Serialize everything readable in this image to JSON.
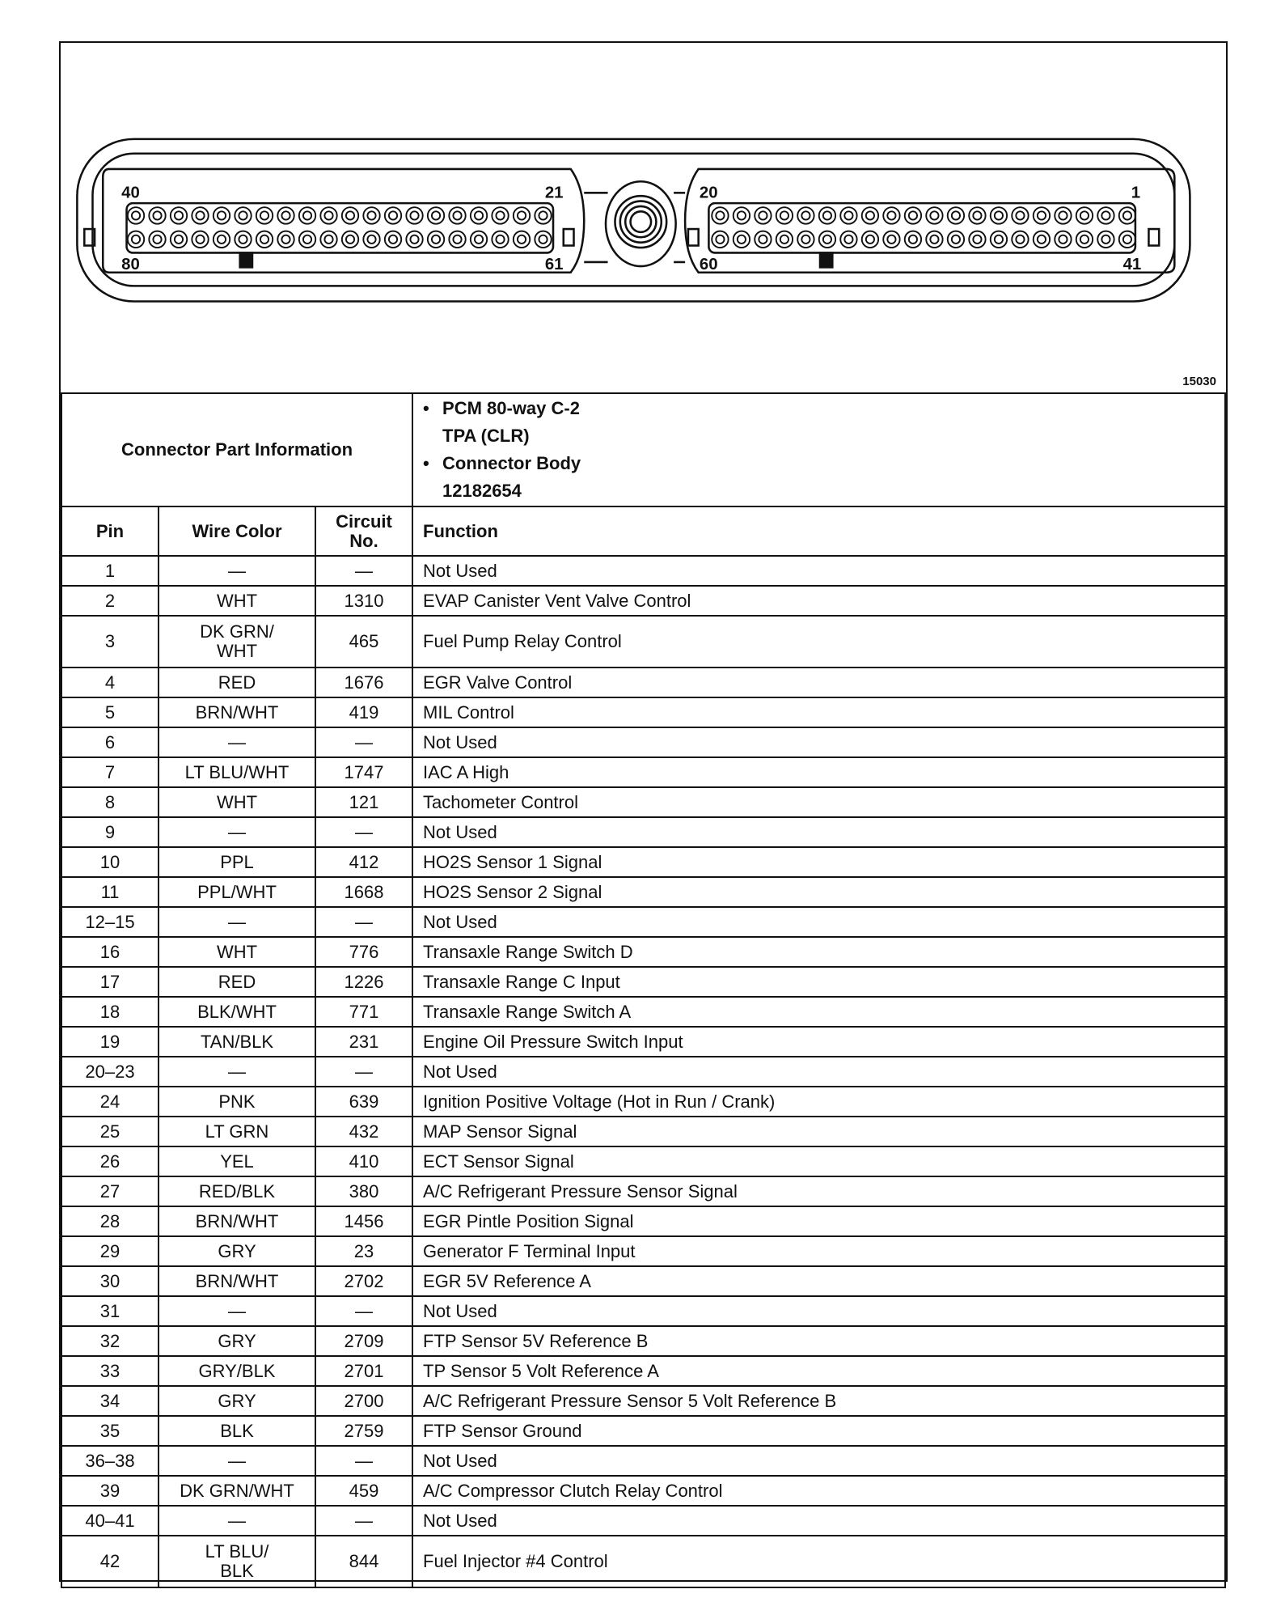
{
  "figure_number": "15030",
  "connector": {
    "pin_labels": {
      "top_left": "40",
      "top_mid_left": "21",
      "top_mid_right": "20",
      "top_right": "1",
      "bottom_left": "80",
      "bottom_mid_left": "61",
      "bottom_mid_right": "60",
      "bottom_right": "41"
    }
  },
  "part_info": {
    "label": "Connector Part Information",
    "items": [
      {
        "line1": "PCM 80-way C-2",
        "line2": "TPA (CLR)"
      },
      {
        "line1": "Connector Body",
        "line2": "12182654"
      }
    ]
  },
  "table": {
    "headers": {
      "pin": "Pin",
      "wire_color": "Wire Color",
      "circuit_line1": "Circuit",
      "circuit_line2": "No.",
      "function": "Function"
    },
    "rows": [
      {
        "pin": "1",
        "color": "—",
        "circuit": "—",
        "function": "Not Used"
      },
      {
        "pin": "2",
        "color": "WHT",
        "circuit": "1310",
        "function": "EVAP Canister Vent Valve Control"
      },
      {
        "pin": "3",
        "color": "DK GRN/ WHT",
        "circuit": "465",
        "function": "Fuel Pump Relay Control",
        "tall": true
      },
      {
        "pin": "4",
        "color": "RED",
        "circuit": "1676",
        "function": "EGR Valve Control"
      },
      {
        "pin": "5",
        "color": "BRN/WHT",
        "circuit": "419",
        "function": "MIL Control"
      },
      {
        "pin": "6",
        "color": "—",
        "circuit": "—",
        "function": "Not Used"
      },
      {
        "pin": "7",
        "color": "LT BLU/WHT",
        "circuit": "1747",
        "function": "IAC A High"
      },
      {
        "pin": "8",
        "color": "WHT",
        "circuit": "121",
        "function": "Tachometer Control"
      },
      {
        "pin": "9",
        "color": "—",
        "circuit": "—",
        "function": "Not Used"
      },
      {
        "pin": "10",
        "color": "PPL",
        "circuit": "412",
        "function": "HO2S Sensor 1 Signal"
      },
      {
        "pin": "11",
        "color": "PPL/WHT",
        "circuit": "1668",
        "function": "HO2S Sensor 2 Signal"
      },
      {
        "pin": "12–15",
        "color": "—",
        "circuit": "—",
        "function": "Not Used"
      },
      {
        "pin": "16",
        "color": "WHT",
        "circuit": "776",
        "function": "Transaxle Range Switch D"
      },
      {
        "pin": "17",
        "color": "RED",
        "circuit": "1226",
        "function": "Transaxle Range C Input"
      },
      {
        "pin": "18",
        "color": "BLK/WHT",
        "circuit": "771",
        "function": "Transaxle Range Switch A"
      },
      {
        "pin": "19",
        "color": "TAN/BLK",
        "circuit": "231",
        "function": "Engine Oil Pressure Switch Input"
      },
      {
        "pin": "20–23",
        "color": "—",
        "circuit": "—",
        "function": "Not Used"
      },
      {
        "pin": "24",
        "color": "PNK",
        "circuit": "639",
        "function": "Ignition Positive Voltage (Hot in Run / Crank)"
      },
      {
        "pin": "25",
        "color": "LT GRN",
        "circuit": "432",
        "function": "MAP Sensor Signal"
      },
      {
        "pin": "26",
        "color": "YEL",
        "circuit": "410",
        "function": "ECT Sensor Signal"
      },
      {
        "pin": "27",
        "color": "RED/BLK",
        "circuit": "380",
        "function": "A/C Refrigerant Pressure Sensor Signal"
      },
      {
        "pin": "28",
        "color": "BRN/WHT",
        "circuit": "1456",
        "function": "EGR Pintle Position Signal"
      },
      {
        "pin": "29",
        "color": "GRY",
        "circuit": "23",
        "function": "Generator F Terminal Input"
      },
      {
        "pin": "30",
        "color": "BRN/WHT",
        "circuit": "2702",
        "function": "EGR 5V Reference A"
      },
      {
        "pin": "31",
        "color": "—",
        "circuit": "—",
        "function": "Not Used"
      },
      {
        "pin": "32",
        "color": "GRY",
        "circuit": "2709",
        "function": "FTP Sensor 5V Reference B"
      },
      {
        "pin": "33",
        "color": "GRY/BLK",
        "circuit": "2701",
        "function": "TP Sensor 5 Volt Reference A"
      },
      {
        "pin": "34",
        "color": "GRY",
        "circuit": "2700",
        "function": "A/C Refrigerant Pressure Sensor 5 Volt Reference B"
      },
      {
        "pin": "35",
        "color": "BLK",
        "circuit": "2759",
        "function": "FTP Sensor Ground"
      },
      {
        "pin": "36–38",
        "color": "—",
        "circuit": "—",
        "function": "Not Used"
      },
      {
        "pin": "39",
        "color": "DK GRN/WHT",
        "circuit": "459",
        "function": "A/C Compressor Clutch Relay Control"
      },
      {
        "pin": "40–41",
        "color": "—",
        "circuit": "—",
        "function": "Not Used"
      },
      {
        "pin": "42",
        "color": "LT BLU/ BLK",
        "circuit": "844",
        "function": "Fuel Injector #4 Control",
        "tall": true
      }
    ]
  }
}
